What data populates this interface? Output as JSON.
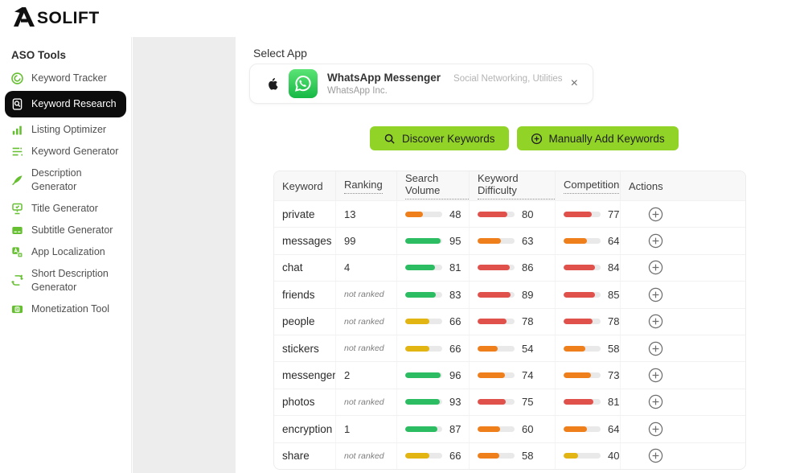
{
  "brand": {
    "logo_text": "SOLIFT"
  },
  "sidebar": {
    "section_title": "ASO Tools",
    "items": [
      {
        "label": "Keyword Tracker",
        "icon": "keyword-tracker",
        "active": false
      },
      {
        "label": "Keyword Research",
        "icon": "keyword-research",
        "active": true
      },
      {
        "label": "Listing Optimizer",
        "icon": "listing-optimizer",
        "active": false
      },
      {
        "label": "Keyword Generator",
        "icon": "keyword-generator",
        "active": false
      },
      {
        "label": "Description Generator",
        "icon": "description-generator",
        "active": false
      },
      {
        "label": "Title Generator",
        "icon": "title-generator",
        "active": false
      },
      {
        "label": "Subtitle Generator",
        "icon": "subtitle-generator",
        "active": false
      },
      {
        "label": "App Localization",
        "icon": "app-localization",
        "active": false
      },
      {
        "label": "Short Description Generator",
        "icon": "short-description-generator",
        "active": false
      },
      {
        "label": "Monetization Tool",
        "icon": "monetization-tool",
        "active": false
      }
    ]
  },
  "main": {
    "select_app_label": "Select App",
    "app_card": {
      "name": "WhatsApp Messenger",
      "developer": "WhatsApp Inc.",
      "categories": "Social Networking, Utilities",
      "close_label": "×"
    },
    "actions": {
      "discover": "Discover Keywords",
      "manual": "Manually Add Keywords"
    }
  },
  "table": {
    "columns": [
      {
        "label": "Keyword",
        "underline": false
      },
      {
        "label": "Ranking",
        "underline": true
      },
      {
        "label": "Search Volume",
        "underline": true
      },
      {
        "label": "Keyword Difficulty",
        "underline": true
      },
      {
        "label": "Competition",
        "underline": true
      },
      {
        "label": "Actions",
        "underline": false
      }
    ],
    "not_ranked_label": "not ranked",
    "rows": [
      {
        "keyword": "private",
        "ranking": "13",
        "search_volume": {
          "value": 48,
          "level": "orange"
        },
        "keyword_difficulty": {
          "value": 80,
          "level": "red"
        },
        "competition": {
          "value": 77,
          "level": "red"
        }
      },
      {
        "keyword": "messages",
        "ranking": "99",
        "search_volume": {
          "value": 95,
          "level": "green"
        },
        "keyword_difficulty": {
          "value": 63,
          "level": "orange"
        },
        "competition": {
          "value": 64,
          "level": "orange"
        }
      },
      {
        "keyword": "chat",
        "ranking": "4",
        "search_volume": {
          "value": 81,
          "level": "green"
        },
        "keyword_difficulty": {
          "value": 86,
          "level": "red"
        },
        "competition": {
          "value": 84,
          "level": "red"
        }
      },
      {
        "keyword": "friends",
        "ranking": null,
        "search_volume": {
          "value": 83,
          "level": "green"
        },
        "keyword_difficulty": {
          "value": 89,
          "level": "red"
        },
        "competition": {
          "value": 85,
          "level": "red"
        }
      },
      {
        "keyword": "people",
        "ranking": null,
        "search_volume": {
          "value": 66,
          "level": "yellow"
        },
        "keyword_difficulty": {
          "value": 78,
          "level": "red"
        },
        "competition": {
          "value": 78,
          "level": "red"
        }
      },
      {
        "keyword": "stickers",
        "ranking": null,
        "search_volume": {
          "value": 66,
          "level": "yellow"
        },
        "keyword_difficulty": {
          "value": 54,
          "level": "orange"
        },
        "competition": {
          "value": 58,
          "level": "orange"
        }
      },
      {
        "keyword": "messenger",
        "ranking": "2",
        "search_volume": {
          "value": 96,
          "level": "green"
        },
        "keyword_difficulty": {
          "value": 74,
          "level": "orange"
        },
        "competition": {
          "value": 73,
          "level": "orange"
        }
      },
      {
        "keyword": "photos",
        "ranking": null,
        "search_volume": {
          "value": 93,
          "level": "green"
        },
        "keyword_difficulty": {
          "value": 75,
          "level": "red"
        },
        "competition": {
          "value": 81,
          "level": "red"
        }
      },
      {
        "keyword": "encryption",
        "ranking": "1",
        "search_volume": {
          "value": 87,
          "level": "green"
        },
        "keyword_difficulty": {
          "value": 60,
          "level": "orange"
        },
        "competition": {
          "value": 64,
          "level": "orange"
        }
      },
      {
        "keyword": "share",
        "ranking": null,
        "search_volume": {
          "value": 66,
          "level": "yellow"
        },
        "keyword_difficulty": {
          "value": 58,
          "level": "orange"
        },
        "competition": {
          "value": 40,
          "level": "yellow"
        }
      }
    ]
  },
  "colors": {
    "accent": "#92d327",
    "icon_green": "#65bf31",
    "green": "#2cbd63",
    "yellow": "#e3b512",
    "orange": "#ef7f1b",
    "red": "#e0514c",
    "track": "#e9e9e9"
  }
}
